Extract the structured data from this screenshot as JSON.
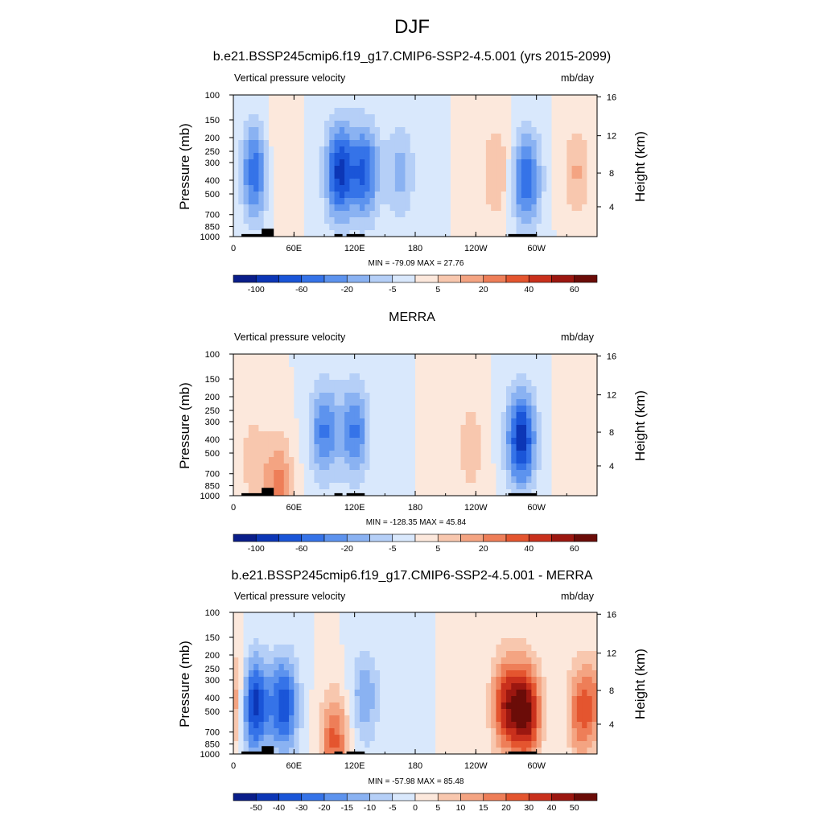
{
  "title": "DJF",
  "colors": {
    "neg": [
      "#0a1e8a",
      "#0c36b6",
      "#1a55d8",
      "#3573e8",
      "#5d93ee",
      "#8ab2f2",
      "#b5cff7",
      "#d9e8fc"
    ],
    "pos": [
      "#fce8dc",
      "#f8c7ae",
      "#f4a482",
      "#ee7e58",
      "#e4552f",
      "#c9301c",
      "#9c1710",
      "#6b0c08"
    ]
  },
  "panels": [
    {
      "title": "b.e21.BSSP245cmip6.f19_g17.CMIP6-SSP2-4.5.001 (yrs 2015-2099)",
      "left_label": "Vertical pressure velocity",
      "right_label": "mb/day",
      "minmax": "MIN = -79.09  MAX =  27.76",
      "colorbar_ticks": [
        "-100",
        "-60",
        "-20",
        "-5",
        "5",
        "20",
        "40",
        "60"
      ]
    },
    {
      "title": "MERRA",
      "left_label": "Vertical pressure velocity",
      "right_label": "mb/day",
      "minmax": "MIN = -128.35  MAX =  45.84",
      "colorbar_ticks": [
        "-100",
        "-60",
        "-20",
        "-5",
        "5",
        "20",
        "40",
        "60"
      ]
    },
    {
      "title": "b.e21.BSSP245cmip6.f19_g17.CMIP6-SSP2-4.5.001 - MERRA",
      "left_label": "Vertical pressure velocity",
      "right_label": "mb/day",
      "minmax": "MIN = -57.98  MAX =  85.48",
      "colorbar_ticks": [
        "-50",
        "-40",
        "-30",
        "-20",
        "-15",
        "-10",
        "-5",
        "0",
        "5",
        "10",
        "15",
        "20",
        "30",
        "40",
        "50"
      ]
    }
  ],
  "chart_data": [
    {
      "type": "heatmap",
      "title": "b.e21.BSSP245cmip6.f19_g17.CMIP6-SSP2-4.5.001 (yrs 2015-2099)",
      "variable": "Vertical pressure velocity",
      "units": "mb/day",
      "xlabel": "",
      "ylabel": "Pressure (mb)",
      "y2label": "Height (km)",
      "x_ticks": [
        "0",
        "60E",
        "120E",
        "180",
        "120W",
        "60W"
      ],
      "y_ticks": [
        "100",
        "150",
        "200",
        "250",
        "300",
        "400",
        "500",
        "700",
        "850",
        "1000"
      ],
      "y2_ticks": [
        "4",
        "8",
        "12",
        "16"
      ],
      "legend": "bottom",
      "min": -79.09,
      "max": 27.76,
      "features": [
        {
          "lon": 22,
          "p": 350,
          "value": -60
        },
        {
          "lon": 38,
          "p": 300,
          "value": 15
        },
        {
          "lon": 105,
          "p": 350,
          "value": -75
        },
        {
          "lon": 130,
          "p": 350,
          "value": -60
        },
        {
          "lon": 165,
          "p": 350,
          "value": -30
        },
        {
          "lon": 260,
          "p": 350,
          "value": 25
        },
        {
          "lon": 290,
          "p": 400,
          "value": -60
        },
        {
          "lon": 340,
          "p": 350,
          "value": 25
        }
      ]
    },
    {
      "type": "heatmap",
      "title": "MERRA",
      "variable": "Vertical pressure velocity",
      "units": "mb/day",
      "xlabel": "",
      "ylabel": "Pressure (mb)",
      "y2label": "Height (km)",
      "x_ticks": [
        "0",
        "60E",
        "120E",
        "180",
        "120W",
        "60W"
      ],
      "y_ticks": [
        "100",
        "150",
        "200",
        "250",
        "300",
        "400",
        "500",
        "700",
        "850",
        "1000"
      ],
      "y2_ticks": [
        "4",
        "8",
        "12",
        "16"
      ],
      "legend": "bottom",
      "min": -128.35,
      "max": 45.84,
      "features": [
        {
          "lon": 20,
          "p": 550,
          "value": 20
        },
        {
          "lon": 45,
          "p": 850,
          "value": 40
        },
        {
          "lon": 90,
          "p": 350,
          "value": -50
        },
        {
          "lon": 120,
          "p": 350,
          "value": -50
        },
        {
          "lon": 235,
          "p": 450,
          "value": 20
        },
        {
          "lon": 285,
          "p": 400,
          "value": -80
        },
        {
          "lon": 335,
          "p": 350,
          "value": 10
        }
      ]
    },
    {
      "type": "heatmap",
      "title": "b.e21.BSSP245cmip6.f19_g17.CMIP6-SSP2-4.5.001 - MERRA",
      "variable": "Vertical pressure velocity",
      "units": "mb/day",
      "xlabel": "",
      "ylabel": "Pressure (mb)",
      "y2label": "Height (km)",
      "x_ticks": [
        "0",
        "60E",
        "120E",
        "180",
        "120W",
        "60W"
      ],
      "y_ticks": [
        "100",
        "150",
        "200",
        "250",
        "300",
        "400",
        "500",
        "700",
        "850",
        "1000"
      ],
      "y2_ticks": [
        "4",
        "8",
        "12",
        "16"
      ],
      "legend": "bottom",
      "min": -57.98,
      "max": 85.48,
      "features": [
        {
          "lon": 5,
          "p": 400,
          "value": 20
        },
        {
          "lon": 20,
          "p": 450,
          "value": -50
        },
        {
          "lon": 50,
          "p": 450,
          "value": -40
        },
        {
          "lon": 100,
          "p": 800,
          "value": 30
        },
        {
          "lon": 130,
          "p": 400,
          "value": -20
        },
        {
          "lon": 270,
          "p": 450,
          "value": 40
        },
        {
          "lon": 290,
          "p": 500,
          "value": 50
        },
        {
          "lon": 345,
          "p": 500,
          "value": 30
        }
      ]
    }
  ]
}
